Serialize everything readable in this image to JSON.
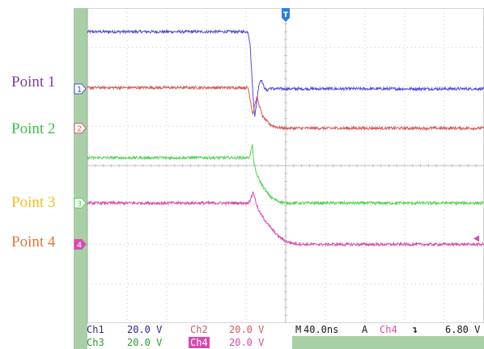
{
  "labels": {
    "point1": "Point 1",
    "point2": "Point 2",
    "point3": "Point 3",
    "point4": "Point 4"
  },
  "colors": {
    "ch1": "#4f4fcf",
    "ch2": "#d45a5a",
    "ch3": "#52d452",
    "ch4": "#d64bb0",
    "point1": "#8040a8",
    "point2": "#3fbf4a",
    "point3": "#f0c020",
    "point4": "#e07838",
    "grid": "#bcbcbc",
    "frame": "#a8cfa6",
    "trigger": "#2b7fd8",
    "level_arrow": "#d64bb0"
  },
  "markers": [
    "1",
    "2",
    "3",
    "4"
  ],
  "trigger_marker": "T",
  "status": {
    "ch1_name": "Ch1",
    "ch1_scale": "20.0 V",
    "ch2_name": "Ch2",
    "ch2_scale": "20.0 V",
    "ch3_name": "Ch3",
    "ch3_scale": "20.0 V",
    "ch4_name": "Ch4",
    "ch4_scale": "20.0 V",
    "timebase_prefix": "M",
    "timebase": "40.0ns",
    "trig_mode": "A",
    "trig_source": "Ch4",
    "trig_slope_icon": "falling-edge-icon",
    "trig_level": "6.80 V"
  },
  "chart_data": {
    "type": "line",
    "x_unit": "div",
    "y_unit": "div",
    "xlim": [
      -5,
      5
    ],
    "ylim": [
      -4,
      4
    ],
    "grid": true,
    "time_per_div": "40.0ns",
    "trigger_x": 0,
    "trigger_level_y": -1.85,
    "series": [
      {
        "id": "ch1",
        "color": "#4f4fcf",
        "marker_level": 1.95,
        "points": [
          [
            -5,
            3.4
          ],
          [
            -0.95,
            3.4
          ],
          [
            -0.9,
            3.1
          ],
          [
            -0.86,
            2.4
          ],
          [
            -0.82,
            1.7
          ],
          [
            -0.78,
            1.25
          ],
          [
            -0.73,
            1.6
          ],
          [
            -0.68,
            2.05
          ],
          [
            -0.62,
            2.2
          ],
          [
            -0.55,
            2.0
          ],
          [
            -0.48,
            1.9
          ],
          [
            -0.4,
            1.97
          ],
          [
            -0.3,
            1.95
          ],
          [
            5,
            1.95
          ]
        ]
      },
      {
        "id": "ch2",
        "color": "#d45a5a",
        "marker_level": 0.95,
        "points": [
          [
            -5,
            1.98
          ],
          [
            -0.95,
            1.98
          ],
          [
            -0.88,
            1.6
          ],
          [
            -0.83,
            1.3
          ],
          [
            -0.78,
            1.55
          ],
          [
            -0.72,
            1.75
          ],
          [
            -0.66,
            1.5
          ],
          [
            -0.58,
            1.25
          ],
          [
            -0.5,
            1.15
          ],
          [
            -0.4,
            1.05
          ],
          [
            -0.3,
            1.0
          ],
          [
            -0.2,
            0.97
          ],
          [
            0,
            0.95
          ],
          [
            5,
            0.95
          ]
        ]
      },
      {
        "id": "ch3",
        "color": "#52d452",
        "marker_level": -0.95,
        "points": [
          [
            -5,
            0.2
          ],
          [
            -0.95,
            0.2
          ],
          [
            -0.9,
            0.25
          ],
          [
            -0.84,
            0.55
          ],
          [
            -0.8,
            0.05
          ],
          [
            -0.74,
            -0.2
          ],
          [
            -0.62,
            -0.45
          ],
          [
            -0.5,
            -0.65
          ],
          [
            -0.35,
            -0.82
          ],
          [
            -0.2,
            -0.9
          ],
          [
            0,
            -0.95
          ],
          [
            5,
            -0.95
          ]
        ]
      },
      {
        "id": "ch4",
        "color": "#d64bb0",
        "marker_level": -2.0,
        "points": [
          [
            -5,
            -0.95
          ],
          [
            -0.95,
            -0.95
          ],
          [
            -0.88,
            -0.85
          ],
          [
            -0.82,
            -0.65
          ],
          [
            -0.76,
            -0.9
          ],
          [
            -0.68,
            -1.15
          ],
          [
            -0.55,
            -1.35
          ],
          [
            -0.4,
            -1.55
          ],
          [
            -0.2,
            -1.78
          ],
          [
            0.0,
            -1.92
          ],
          [
            0.2,
            -1.98
          ],
          [
            0.5,
            -2.0
          ],
          [
            5,
            -2.0
          ]
        ]
      }
    ]
  }
}
